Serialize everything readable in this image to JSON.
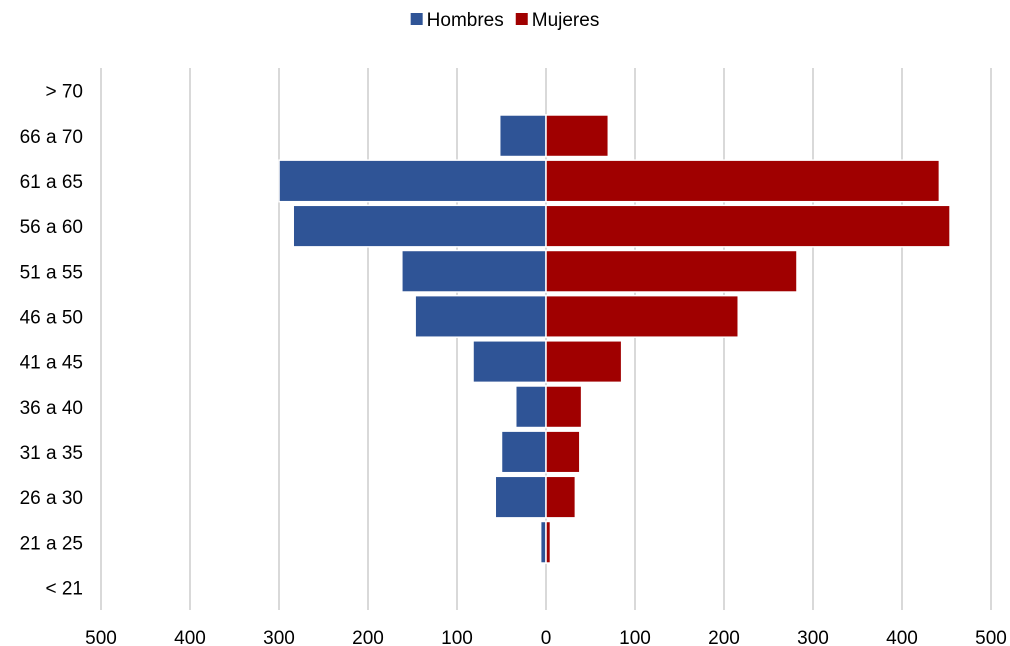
{
  "chart_data": {
    "type": "bar",
    "orientation": "horizontal",
    "subtype": "population-pyramid",
    "categories": [
      "< 21",
      "21 a 25",
      "26 a 30",
      "31 a 35",
      "36 a 40",
      "41 a 45",
      "46 a 50",
      "51 a 55",
      "56 a 60",
      "61 a 65",
      "66 a 70",
      "> 70"
    ],
    "series": [
      {
        "name": "Hombres",
        "side": "left",
        "color": "#2F5496",
        "values": [
          0,
          6,
          57,
          50,
          34,
          82,
          147,
          162,
          284,
          300,
          52,
          0
        ]
      },
      {
        "name": "Mujeres",
        "side": "right",
        "color": "#A00000",
        "values": [
          0,
          5,
          33,
          38,
          40,
          85,
          216,
          282,
          454,
          442,
          70,
          0
        ]
      }
    ],
    "xlim": [
      -500,
      500
    ],
    "x_ticks": [
      -500,
      -400,
      -300,
      -200,
      -100,
      0,
      100,
      200,
      300,
      400,
      500
    ],
    "x_tick_labels": [
      "500",
      "400",
      "300",
      "200",
      "100",
      "0",
      "100",
      "200",
      "300",
      "400",
      "500"
    ],
    "grid": "vertical",
    "grid_color": "#D9D9D9",
    "legend_position": "top-center",
    "title": "",
    "xlabel": "",
    "ylabel": ""
  }
}
